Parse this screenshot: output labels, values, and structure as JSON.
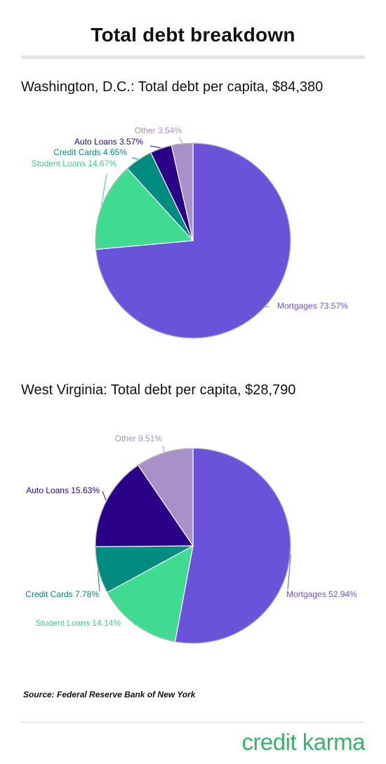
{
  "page": {
    "title": "Total debt breakdown",
    "source": "Source: Federal Reserve Bank of New York",
    "brand": "credit karma"
  },
  "chart_data": [
    {
      "type": "pie",
      "title": "Washington, D.C.: Total debt per capita, $84,380",
      "slices": [
        {
          "label": "Mortgages",
          "value": 73.57,
          "display": "Mortgages 73.57%",
          "color": "#6b52db",
          "label_color": "#6b52db"
        },
        {
          "label": "Student Loans",
          "value": 14.67,
          "display": "Student Loans 14.67%",
          "color": "#3fdb91",
          "label_color": "#3fcf8c"
        },
        {
          "label": "Credit Cards",
          "value": 4.65,
          "display": "Credit Cards 4.65%",
          "color": "#008c80",
          "label_color": "#008c80"
        },
        {
          "label": "Auto Loans",
          "value": 3.57,
          "display": "Auto Loans 3.57%",
          "color": "#2a0089",
          "label_color": "#2a0089"
        },
        {
          "label": "Other",
          "value": 3.54,
          "display": "Other 3.54%",
          "color": "#a890c8",
          "label_color": "#a890c8"
        }
      ]
    },
    {
      "type": "pie",
      "title": "West Virginia: Total debt per capita, $28,790",
      "slices": [
        {
          "label": "Mortgages",
          "value": 52.94,
          "display": "Mortgages 52.94%",
          "color": "#6b52db",
          "label_color": "#6b52db"
        },
        {
          "label": "Student Loans",
          "value": 14.14,
          "display": "Student Loans 14.14%",
          "color": "#3fdb91",
          "label_color": "#3fcf8c"
        },
        {
          "label": "Credit Cards",
          "value": 7.78,
          "display": "Credit Cards 7.78%",
          "color": "#008c80",
          "label_color": "#008c80"
        },
        {
          "label": "Auto Loans",
          "value": 15.63,
          "display": "Auto Loans 15.63%",
          "color": "#2a0089",
          "label_color": "#2a0089"
        },
        {
          "label": "Other",
          "value": 9.51,
          "display": "Other 9.51%",
          "color": "#a890c8",
          "label_color": "#a890c8"
        }
      ]
    }
  ]
}
